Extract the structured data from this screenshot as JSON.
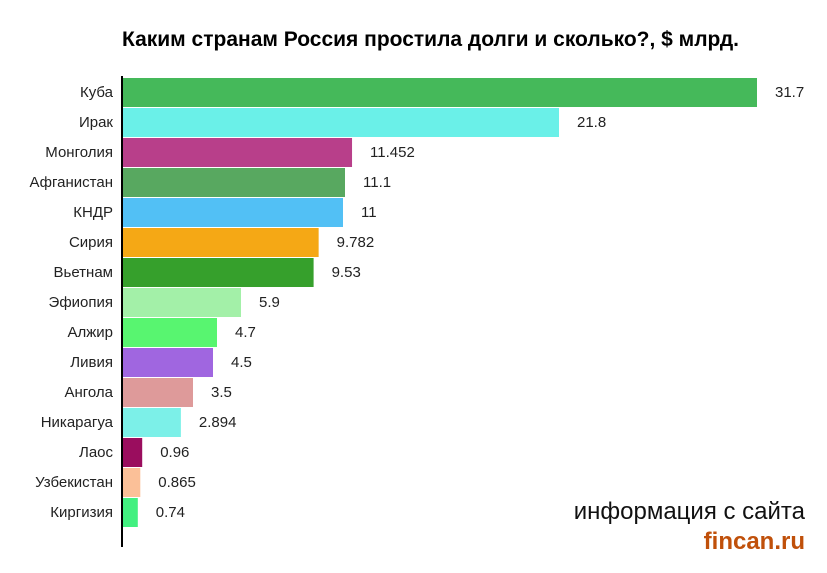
{
  "chart_data": {
    "type": "bar",
    "orientation": "horizontal",
    "title": "Каким странам Россия простила долги и сколько?, $ млрд.",
    "categories": [
      "Куба",
      "Ирак",
      "Монголия",
      "Афганистан",
      "КНДР",
      "Сирия",
      "Вьетнам",
      "Эфиопия",
      "Алжир",
      "Ливия",
      "Ангола",
      "Никарагуа",
      "Лаос",
      "Узбекистан",
      "Киргизия"
    ],
    "value_labels": [
      "31.7",
      "21.8",
      "11.452",
      "11.1",
      "11",
      "9.782",
      "9.53",
      "5.9",
      "4.7",
      "4.5",
      "3.5",
      "2.894",
      "0.96",
      "0.865",
      "0.74"
    ],
    "values": [
      31.7,
      21.8,
      11.452,
      11.1,
      11,
      9.782,
      9.53,
      5.9,
      4.7,
      4.5,
      3.5,
      2.894,
      0.96,
      0.865,
      0.74
    ],
    "colors": [
      "#45b95a",
      "#6af0e8",
      "#b83f8a",
      "#58a860",
      "#52c0f5",
      "#f5a815",
      "#36a02c",
      "#a3f0a8",
      "#58f570",
      "#a066e0",
      "#de9a9a",
      "#7cf0e8",
      "#9a0d5e",
      "#fbc098",
      "#42f080"
    ],
    "xlim": [
      0,
      31.7
    ],
    "grid": false,
    "legend": "none"
  },
  "source": {
    "line1": "информация с сайта",
    "line2": "fincan.ru",
    "line2_color": "#c0500a"
  }
}
